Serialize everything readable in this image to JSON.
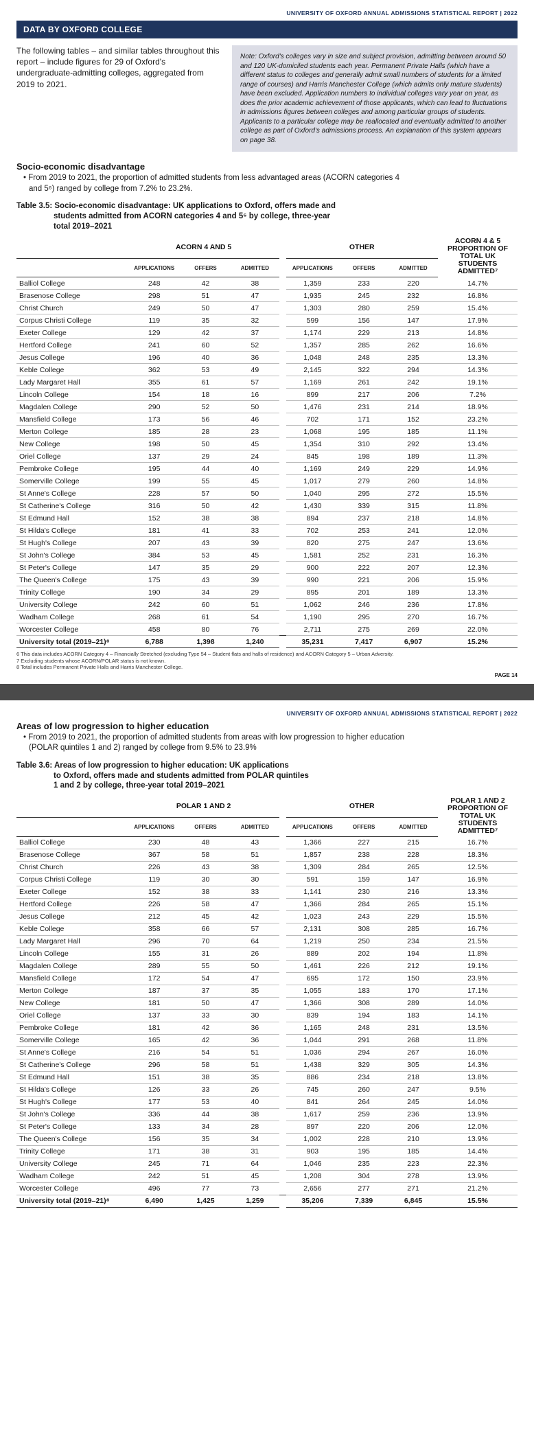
{
  "report_header": "UNIVERSITY OF OXFORD ANNUAL ADMISSIONS STATISTICAL REPORT | 2022",
  "section_bar": "DATA BY OXFORD COLLEGE",
  "intro_text": "The following tables – and similar tables throughout this report – include figures for 29 of Oxford's undergraduate-admitting colleges, aggregated from 2019 to 2021.",
  "note_box": "Note: Oxford's colleges vary in size and subject provision, admitting between around 50 and 120 UK-domiciled students each year. Permanent Private Halls (which have a different status to colleges and generally admit small numbers of students for a limited range of courses) and Harris Manchester College (which admits only mature students) have been excluded. Application numbers to individual colleges vary year on year, as does the prior academic achievement of those applicants, which can lead to fluctuations in admissions figures between colleges and among particular groups of students. Applicants to a particular college may be reallocated and eventually admitted to another college as part of Oxford's admissions process. An explanation of this system appears on page 38.",
  "sec1": {
    "heading": "Socio-economic disadvantage",
    "bullet": "• From 2019 to 2021, the proportion of admitted students from less advantaged areas (ACORN categories 4 and 5⁶) ranged by college from 7.2% to 23.2%.",
    "table_title_l1": "Table 3.5: Socio-economic disadvantage: UK applications to Oxford, offers made and",
    "table_title_l2": "students admitted from ACORN categories 4 and 5⁶ by college, three-year",
    "table_title_l3": "total 2019–2021",
    "group1": "ACORN 4 AND 5",
    "group2": "OTHER",
    "prop_header": "ACORN 4 & 5 PROPORTION OF TOTAL UK STUDENTS ADMITTED⁷",
    "cols": {
      "apps": "APPLICATIONS",
      "offers": "OFFERS",
      "adm": "ADMITTED"
    },
    "rows": [
      [
        "Balliol College",
        "248",
        "42",
        "38",
        "1,359",
        "233",
        "220",
        "14.7%"
      ],
      [
        "Brasenose College",
        "298",
        "51",
        "47",
        "1,935",
        "245",
        "232",
        "16.8%"
      ],
      [
        "Christ Church",
        "249",
        "50",
        "47",
        "1,303",
        "280",
        "259",
        "15.4%"
      ],
      [
        "Corpus Christi College",
        "119",
        "35",
        "32",
        "599",
        "156",
        "147",
        "17.9%"
      ],
      [
        "Exeter College",
        "129",
        "42",
        "37",
        "1,174",
        "229",
        "213",
        "14.8%"
      ],
      [
        "Hertford College",
        "241",
        "60",
        "52",
        "1,357",
        "285",
        "262",
        "16.6%"
      ],
      [
        "Jesus College",
        "196",
        "40",
        "36",
        "1,048",
        "248",
        "235",
        "13.3%"
      ],
      [
        "Keble College",
        "362",
        "53",
        "49",
        "2,145",
        "322",
        "294",
        "14.3%"
      ],
      [
        "Lady Margaret Hall",
        "355",
        "61",
        "57",
        "1,169",
        "261",
        "242",
        "19.1%"
      ],
      [
        "Lincoln College",
        "154",
        "18",
        "16",
        "899",
        "217",
        "206",
        "7.2%"
      ],
      [
        "Magdalen College",
        "290",
        "52",
        "50",
        "1,476",
        "231",
        "214",
        "18.9%"
      ],
      [
        "Mansfield College",
        "173",
        "56",
        "46",
        "702",
        "171",
        "152",
        "23.2%"
      ],
      [
        "Merton College",
        "185",
        "28",
        "23",
        "1,068",
        "195",
        "185",
        "11.1%"
      ],
      [
        "New College",
        "198",
        "50",
        "45",
        "1,354",
        "310",
        "292",
        "13.4%"
      ],
      [
        "Oriel College",
        "137",
        "29",
        "24",
        "845",
        "198",
        "189",
        "11.3%"
      ],
      [
        "Pembroke College",
        "195",
        "44",
        "40",
        "1,169",
        "249",
        "229",
        "14.9%"
      ],
      [
        "Somerville College",
        "199",
        "55",
        "45",
        "1,017",
        "279",
        "260",
        "14.8%"
      ],
      [
        "St Anne's College",
        "228",
        "57",
        "50",
        "1,040",
        "295",
        "272",
        "15.5%"
      ],
      [
        "St Catherine's College",
        "316",
        "50",
        "42",
        "1,430",
        "339",
        "315",
        "11.8%"
      ],
      [
        "St Edmund Hall",
        "152",
        "38",
        "38",
        "894",
        "237",
        "218",
        "14.8%"
      ],
      [
        "St Hilda's College",
        "181",
        "41",
        "33",
        "702",
        "253",
        "241",
        "12.0%"
      ],
      [
        "St Hugh's College",
        "207",
        "43",
        "39",
        "820",
        "275",
        "247",
        "13.6%"
      ],
      [
        "St John's College",
        "384",
        "53",
        "45",
        "1,581",
        "252",
        "231",
        "16.3%"
      ],
      [
        "St Peter's College",
        "147",
        "35",
        "29",
        "900",
        "222",
        "207",
        "12.3%"
      ],
      [
        "The Queen's College",
        "175",
        "43",
        "39",
        "990",
        "221",
        "206",
        "15.9%"
      ],
      [
        "Trinity College",
        "190",
        "34",
        "29",
        "895",
        "201",
        "189",
        "13.3%"
      ],
      [
        "University College",
        "242",
        "60",
        "51",
        "1,062",
        "246",
        "236",
        "17.8%"
      ],
      [
        "Wadham College",
        "268",
        "61",
        "54",
        "1,190",
        "295",
        "270",
        "16.7%"
      ],
      [
        "Worcester College",
        "458",
        "80",
        "76",
        "2,711",
        "275",
        "269",
        "22.0%"
      ]
    ],
    "total": [
      "University total (2019–21)⁸",
      "6,788",
      "1,398",
      "1,240",
      "35,231",
      "7,417",
      "6,907",
      "15.2%"
    ],
    "footnotes": [
      "6  This data includes ACORN Category 4 – Financially Stretched (excluding Type 54 – Student flats and halls of residence) and ACORN Category 5 – Urban Adversity.",
      "7  Excluding students whose ACORN/POLAR status is not known.",
      "8  Total includes Permanent Private Halls and Harris Manchester College."
    ],
    "page_num": "PAGE 14"
  },
  "sec2": {
    "heading": "Areas of low progression to higher education",
    "bullet": "• From 2019 to 2021, the proportion of admitted students from areas with low progression to higher education (POLAR quintiles 1 and 2) ranged by college from 9.5% to 23.9%",
    "table_title_l1": "Table 3.6: Areas of low progression to higher education: UK applications",
    "table_title_l2": "to Oxford, offers made and students admitted from POLAR quintiles",
    "table_title_l3": "1 and 2 by college, three-year total 2019–2021",
    "group1": "POLAR 1 AND 2",
    "group2": "OTHER",
    "prop_header": "POLAR 1 AND 2 PROPORTION OF TOTAL UK STUDENTS ADMITTED⁷",
    "cols": {
      "apps": "APPLICATIONS",
      "offers": "OFFERS",
      "adm": "ADMITTED"
    },
    "rows": [
      [
        "Balliol College",
        "230",
        "48",
        "43",
        "1,366",
        "227",
        "215",
        "16.7%"
      ],
      [
        "Brasenose College",
        "367",
        "58",
        "51",
        "1,857",
        "238",
        "228",
        "18.3%"
      ],
      [
        "Christ Church",
        "226",
        "43",
        "38",
        "1,309",
        "284",
        "265",
        "12.5%"
      ],
      [
        "Corpus Christi College",
        "119",
        "30",
        "30",
        "591",
        "159",
        "147",
        "16.9%"
      ],
      [
        "Exeter College",
        "152",
        "38",
        "33",
        "1,141",
        "230",
        "216",
        "13.3%"
      ],
      [
        "Hertford College",
        "226",
        "58",
        "47",
        "1,366",
        "284",
        "265",
        "15.1%"
      ],
      [
        "Jesus College",
        "212",
        "45",
        "42",
        "1,023",
        "243",
        "229",
        "15.5%"
      ],
      [
        "Keble College",
        "358",
        "66",
        "57",
        "2,131",
        "308",
        "285",
        "16.7%"
      ],
      [
        "Lady Margaret Hall",
        "296",
        "70",
        "64",
        "1,219",
        "250",
        "234",
        "21.5%"
      ],
      [
        "Lincoln College",
        "155",
        "31",
        "26",
        "889",
        "202",
        "194",
        "11.8%"
      ],
      [
        "Magdalen College",
        "289",
        "55",
        "50",
        "1,461",
        "226",
        "212",
        "19.1%"
      ],
      [
        "Mansfield College",
        "172",
        "54",
        "47",
        "695",
        "172",
        "150",
        "23.9%"
      ],
      [
        "Merton College",
        "187",
        "37",
        "35",
        "1,055",
        "183",
        "170",
        "17.1%"
      ],
      [
        "New College",
        "181",
        "50",
        "47",
        "1,366",
        "308",
        "289",
        "14.0%"
      ],
      [
        "Oriel College",
        "137",
        "33",
        "30",
        "839",
        "194",
        "183",
        "14.1%"
      ],
      [
        "Pembroke College",
        "181",
        "42",
        "36",
        "1,165",
        "248",
        "231",
        "13.5%"
      ],
      [
        "Somerville College",
        "165",
        "42",
        "36",
        "1,044",
        "291",
        "268",
        "11.8%"
      ],
      [
        "St Anne's College",
        "216",
        "54",
        "51",
        "1,036",
        "294",
        "267",
        "16.0%"
      ],
      [
        "St Catherine's College",
        "296",
        "58",
        "51",
        "1,438",
        "329",
        "305",
        "14.3%"
      ],
      [
        "St Edmund Hall",
        "151",
        "38",
        "35",
        "886",
        "234",
        "218",
        "13.8%"
      ],
      [
        "St Hilda's College",
        "126",
        "33",
        "26",
        "745",
        "260",
        "247",
        "9.5%"
      ],
      [
        "St Hugh's College",
        "177",
        "53",
        "40",
        "841",
        "264",
        "245",
        "14.0%"
      ],
      [
        "St John's College",
        "336",
        "44",
        "38",
        "1,617",
        "259",
        "236",
        "13.9%"
      ],
      [
        "St Peter's College",
        "133",
        "34",
        "28",
        "897",
        "220",
        "206",
        "12.0%"
      ],
      [
        "The Queen's College",
        "156",
        "35",
        "34",
        "1,002",
        "228",
        "210",
        "13.9%"
      ],
      [
        "Trinity College",
        "171",
        "38",
        "31",
        "903",
        "195",
        "185",
        "14.4%"
      ],
      [
        "University College",
        "245",
        "71",
        "64",
        "1,046",
        "235",
        "223",
        "22.3%"
      ],
      [
        "Wadham College",
        "242",
        "51",
        "45",
        "1,208",
        "304",
        "278",
        "13.9%"
      ],
      [
        "Worcester College",
        "496",
        "77",
        "73",
        "2,656",
        "277",
        "271",
        "21.2%"
      ]
    ],
    "total": [
      "University total (2019–21)⁸",
      "6,490",
      "1,425",
      "1,259",
      "35,206",
      "7,339",
      "6,845",
      "15.5%"
    ]
  }
}
